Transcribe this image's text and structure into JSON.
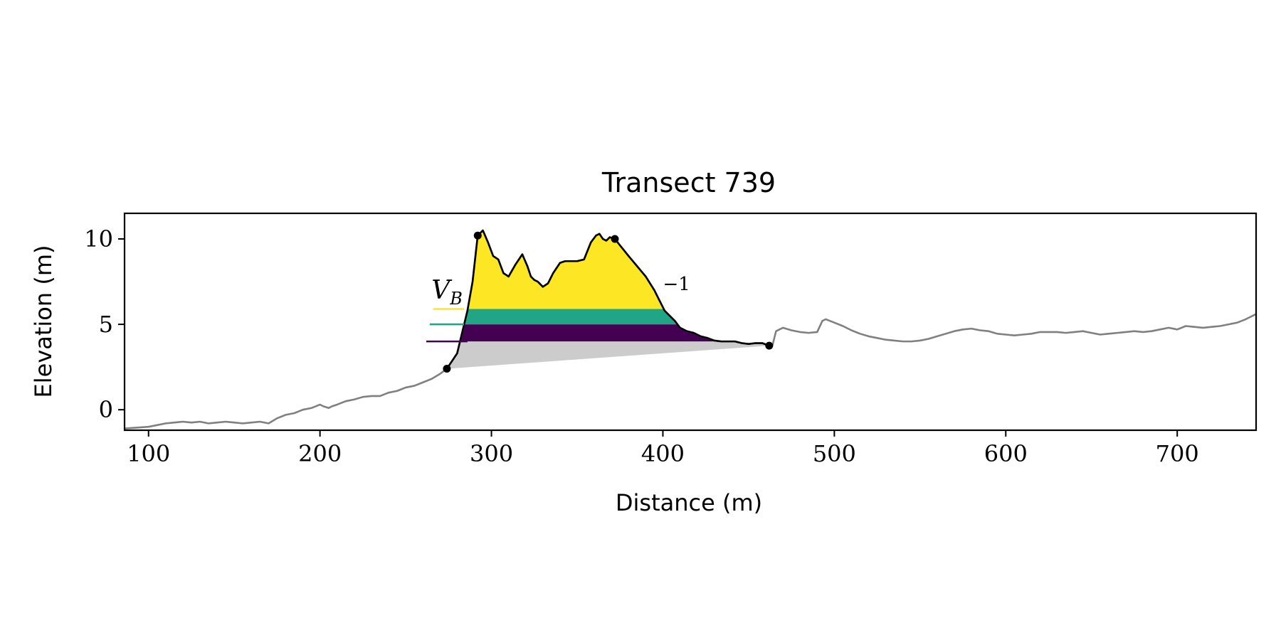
{
  "chart_data": {
    "type": "line",
    "title": "Transect 739",
    "xlabel": "Distance (m)",
    "ylabel": "Elevation (m)",
    "xlim": [
      86,
      746
    ],
    "ylim": [
      -1.2,
      11.5
    ],
    "xticks": [
      100,
      200,
      300,
      400,
      500,
      600,
      700
    ],
    "yticks": [
      0,
      5,
      10
    ],
    "grid": false,
    "colors": {
      "profile": "#808080",
      "dune": "#000000",
      "base_fill": "#cccccc",
      "band_low": "#440154",
      "band_mid": "#21a685",
      "band_high": "#fde725"
    },
    "profile": {
      "x": [
        86,
        100,
        105,
        110,
        115,
        120,
        125,
        130,
        135,
        140,
        145,
        150,
        155,
        160,
        165,
        170,
        175,
        180,
        185,
        190,
        195,
        200,
        202,
        205,
        207,
        210,
        215,
        220,
        225,
        230,
        235,
        240,
        245,
        250,
        255,
        260,
        265,
        270,
        274,
        280,
        286,
        289,
        292,
        295,
        298,
        301,
        304,
        307,
        310,
        314,
        318,
        321,
        323,
        325,
        327,
        330,
        333,
        336,
        340,
        343,
        346,
        350,
        354,
        358,
        361,
        363,
        365,
        367,
        369,
        372,
        376,
        380,
        385,
        390,
        395,
        398,
        401,
        404,
        407,
        410,
        414,
        418,
        422,
        426,
        430,
        434,
        438,
        442,
        446,
        450,
        454,
        458,
        462,
        464,
        466,
        470,
        475,
        480,
        485,
        490,
        493,
        495,
        500,
        505,
        510,
        515,
        520,
        525,
        530,
        535,
        540,
        545,
        550,
        555,
        560,
        565,
        570,
        575,
        580,
        585,
        590,
        595,
        600,
        605,
        610,
        615,
        620,
        625,
        630,
        635,
        640,
        645,
        650,
        655,
        660,
        665,
        670,
        675,
        680,
        685,
        690,
        695,
        700,
        705,
        710,
        715,
        720,
        725,
        730,
        735,
        740,
        746
      ],
      "y": [
        -1.1,
        -1.0,
        -0.9,
        -0.8,
        -0.75,
        -0.7,
        -0.75,
        -0.7,
        -0.8,
        -0.75,
        -0.7,
        -0.75,
        -0.8,
        -0.75,
        -0.7,
        -0.8,
        -0.5,
        -0.3,
        -0.2,
        0.0,
        0.1,
        0.3,
        0.2,
        0.1,
        0.2,
        0.3,
        0.5,
        0.6,
        0.75,
        0.8,
        0.8,
        1.0,
        1.1,
        1.3,
        1.4,
        1.6,
        1.8,
        2.1,
        2.4,
        3.3,
        5.8,
        7.5,
        10.2,
        10.5,
        9.8,
        9.0,
        8.8,
        8.0,
        7.8,
        8.5,
        9.1,
        8.4,
        7.8,
        7.6,
        7.5,
        7.2,
        7.4,
        8.0,
        8.6,
        8.7,
        8.7,
        8.7,
        8.8,
        9.8,
        10.2,
        10.3,
        10.0,
        9.9,
        10.1,
        10.0,
        9.5,
        9.0,
        8.4,
        7.8,
        7.0,
        6.4,
        5.8,
        5.5,
        5.2,
        4.8,
        4.6,
        4.5,
        4.3,
        4.2,
        4.05,
        4.0,
        4.0,
        4.0,
        3.9,
        3.85,
        3.9,
        3.9,
        3.75,
        3.8,
        4.6,
        4.8,
        4.65,
        4.55,
        4.5,
        4.55,
        5.2,
        5.3,
        5.1,
        4.9,
        4.65,
        4.45,
        4.3,
        4.2,
        4.1,
        4.05,
        4.0,
        4.0,
        4.05,
        4.15,
        4.3,
        4.45,
        4.6,
        4.7,
        4.75,
        4.65,
        4.6,
        4.45,
        4.4,
        4.35,
        4.4,
        4.45,
        4.55,
        4.55,
        4.55,
        4.5,
        4.55,
        4.6,
        4.5,
        4.4,
        4.45,
        4.5,
        4.55,
        4.6,
        4.55,
        4.6,
        4.7,
        4.8,
        4.7,
        4.9,
        4.85,
        4.8,
        4.85,
        4.9,
        5.0,
        5.1,
        5.3,
        5.6
      ]
    },
    "dune": {
      "toe": {
        "x": 274,
        "y": 2.4
      },
      "crest_1": {
        "x": 292,
        "y": 10.2
      },
      "crest_2": {
        "x": 372,
        "y": 10.0
      },
      "heel": {
        "x": 462,
        "y": 3.75
      },
      "baseline": {
        "x": [
          274,
          462
        ],
        "y": [
          2.4,
          3.75
        ]
      },
      "bands": [
        {
          "y": [
            4.0,
            5.0
          ]
        },
        {
          "y": [
            5.0,
            5.9
          ]
        },
        {
          "y": [
            5.9,
            10.5
          ]
        }
      ],
      "legend_ticks": [
        {
          "y": 4.0,
          "x": [
            262,
            286
          ]
        },
        {
          "y": 5.0,
          "x": [
            264,
            284
          ]
        },
        {
          "y": 5.9,
          "x": [
            266,
            284
          ]
        }
      ]
    },
    "annotations": [
      {
        "text": "V",
        "subscript": "B",
        "x": 265,
        "y": 6.5
      },
      {
        "text": "−1",
        "x": 400,
        "y": 7.0
      }
    ]
  }
}
